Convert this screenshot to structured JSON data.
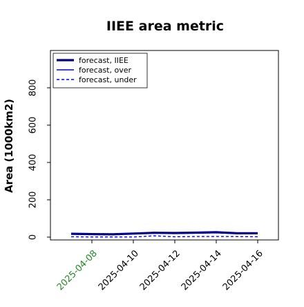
{
  "chart_data": {
    "type": "line",
    "title": "IIEE area metric",
    "xlabel": "",
    "ylabel": "Area (1000km2)",
    "x_axis_type": "date",
    "xlim": [
      "2025-04-06",
      "2025-04-17"
    ],
    "ylim": [
      -15,
      1000
    ],
    "xticks": [
      "2025-04-08",
      "2025-04-10",
      "2025-04-12",
      "2025-04-14",
      "2025-04-16"
    ],
    "xtick_colors": [
      "#228B22",
      "#000000",
      "#000000",
      "#000000",
      "#000000"
    ],
    "yticks": [
      0,
      200,
      400,
      600,
      800
    ],
    "x": [
      "2025-04-07",
      "2025-04-08",
      "2025-04-09",
      "2025-04-10",
      "2025-04-11",
      "2025-04-12",
      "2025-04-13",
      "2025-04-14",
      "2025-04-15",
      "2025-04-16"
    ],
    "series": [
      {
        "name": "forecast, IIEE",
        "color": "#00008B",
        "style": "solid-thick",
        "values": [
          18,
          16,
          15,
          19,
          23,
          22,
          24,
          26,
          21,
          21
        ]
      },
      {
        "name": "forecast, over",
        "color": "#0000CD",
        "style": "solid",
        "values": [
          16,
          15,
          14,
          18,
          26,
          20,
          21,
          23,
          18,
          19
        ]
      },
      {
        "name": "forecast, under",
        "color": "#0000FF",
        "style": "dashed",
        "values": [
          2,
          1,
          1,
          1,
          7,
          2,
          3,
          3,
          3,
          2
        ]
      }
    ],
    "grid": false,
    "legend_position": "upper-left"
  }
}
